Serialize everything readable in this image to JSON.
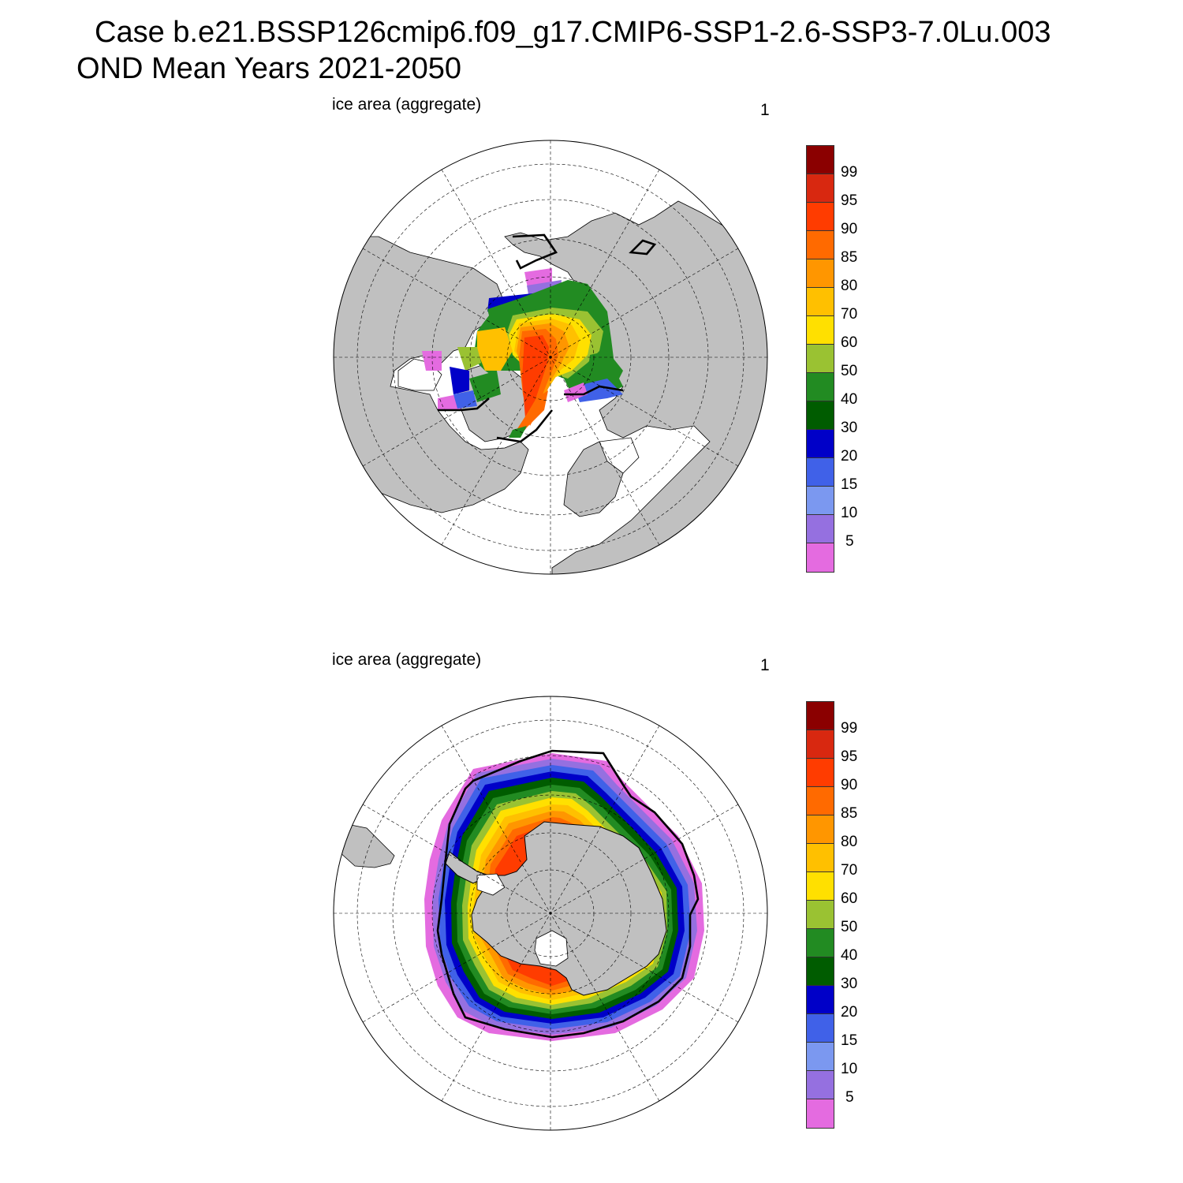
{
  "title": {
    "line1": "Case b.e21.BSSP126cmip6.f09_g17.CMIP6-SSP1-2.6-SSP3-7.0Lu.003",
    "line2": "OND Mean   Years 2021-2050"
  },
  "panels": [
    {
      "label": "ice area  (aggregate)",
      "number": "1",
      "hemisphere": "north"
    },
    {
      "label": "ice area  (aggregate)",
      "number": "1",
      "hemisphere": "south"
    }
  ],
  "colorbar": {
    "colors": [
      "#e46be0",
      "#9570e0",
      "#7b98f0",
      "#4061e8",
      "#0000c8",
      "#005c00",
      "#228b22",
      "#9ac232",
      "#ffe000",
      "#ffc000",
      "#ff9600",
      "#ff6a00",
      "#ff3c00",
      "#d82810",
      "#8b0000"
    ],
    "labels": [
      "5",
      "10",
      "15",
      "20",
      "30",
      "40",
      "50",
      "60",
      "70",
      "80",
      "85",
      "90",
      "95",
      "99"
    ]
  },
  "colors": {
    "land": "#c0c0c0",
    "edge": "#000000"
  }
}
